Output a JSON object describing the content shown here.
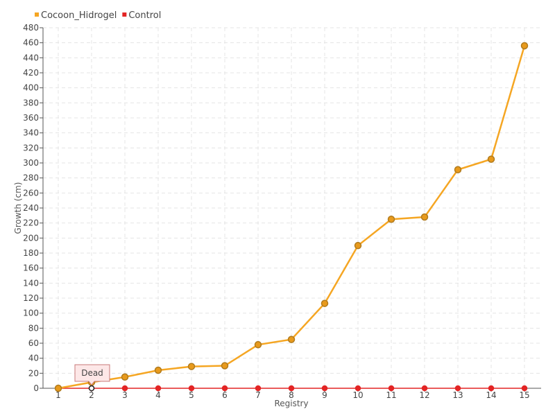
{
  "chart_data": {
    "type": "line",
    "x": [
      "1",
      "2",
      "3",
      "4",
      "5",
      "6",
      "7",
      "8",
      "9",
      "10",
      "11",
      "12",
      "13",
      "14",
      "15"
    ],
    "xlabel": "Registry",
    "ylabel": "Growth (cm)",
    "ylim": [
      0,
      480
    ],
    "ytick_step": 20,
    "grid": true,
    "legend_position": "top-left",
    "series": [
      {
        "name": "Cocoon_Hidrogel",
        "color": "#f5a623",
        "marker_fill": "#e89a1c",
        "marker_stroke": "#b07a1c",
        "values": [
          0,
          8,
          15,
          24,
          29,
          30,
          58,
          65,
          113,
          190,
          225,
          228,
          291,
          305,
          456
        ]
      },
      {
        "name": "Control",
        "color": "#e32424",
        "marker_fill": "#e32424",
        "marker_stroke": "#e32424",
        "values": [
          0,
          0,
          0,
          0,
          0,
          0,
          0,
          0,
          0,
          0,
          0,
          0,
          0,
          0,
          0
        ]
      }
    ],
    "annotation": {
      "text": "Dead",
      "series": "Control",
      "category": "2"
    }
  }
}
